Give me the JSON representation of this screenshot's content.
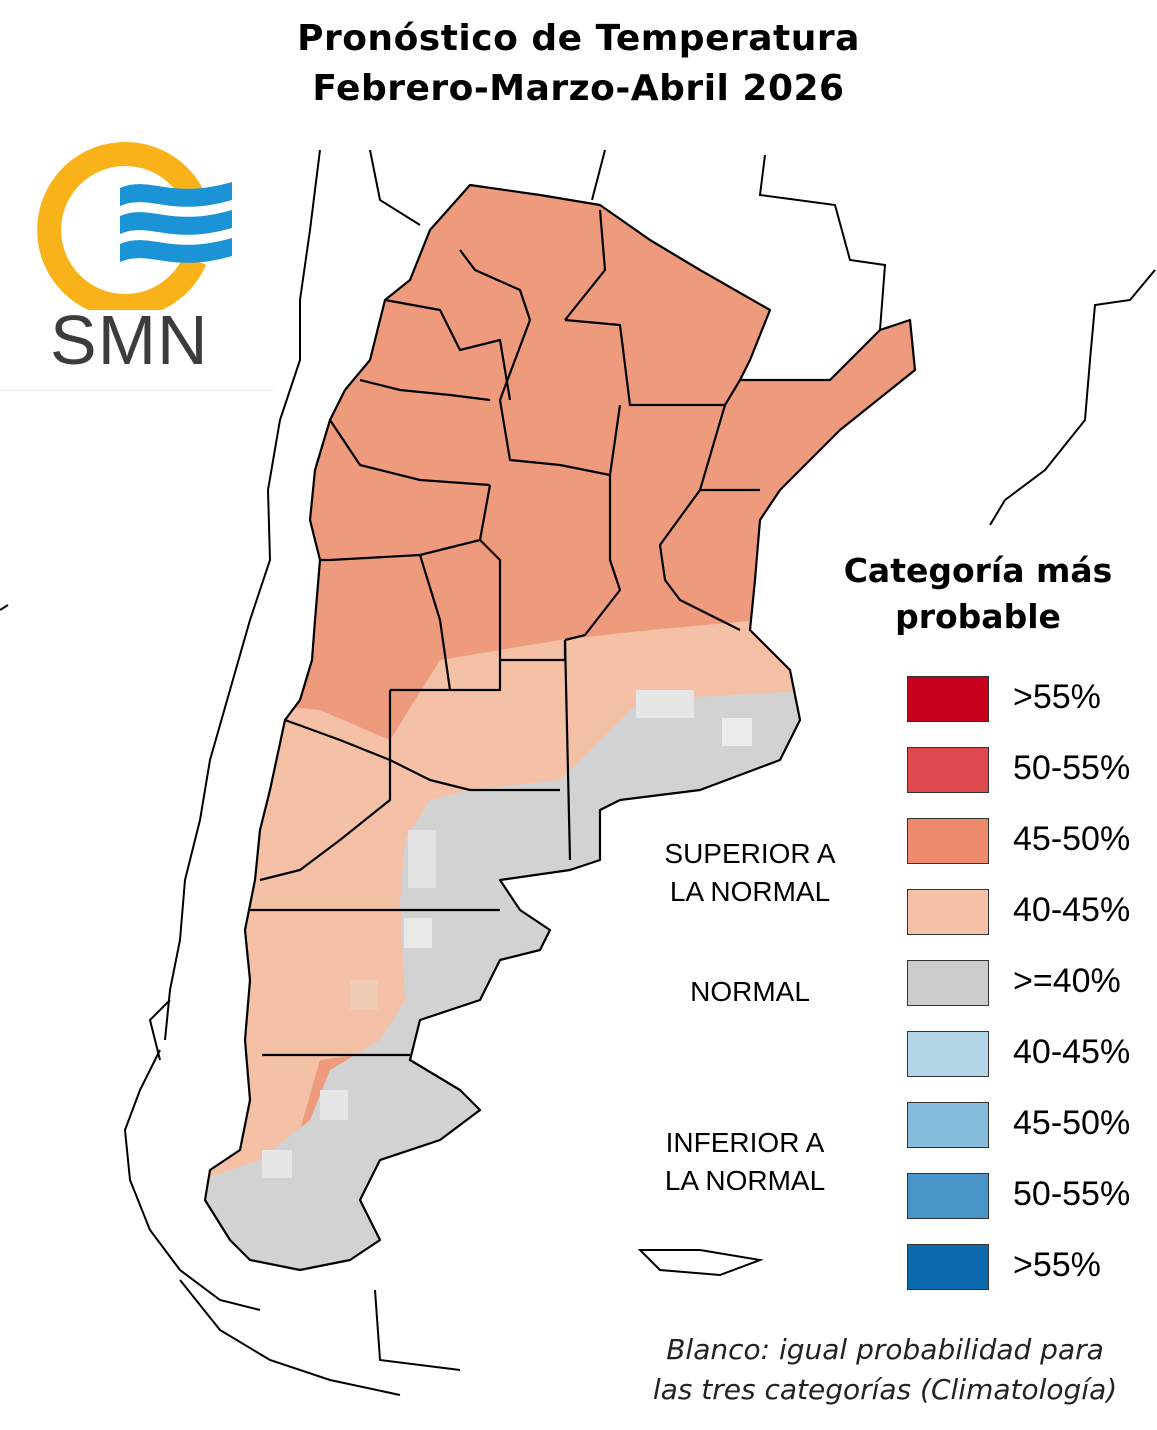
{
  "title": "Pronóstico de Temperatura",
  "subtitle": "Febrero-Marzo-Abril 2026",
  "logo": {
    "text": "SMN",
    "icon": "smn-logo-icon",
    "colors": {
      "ring": "#f9b21a",
      "waves": "#1b93d7"
    }
  },
  "legend": {
    "title_line1": "Categoría más",
    "title_line2": "probable",
    "items": [
      {
        "label": ">55%",
        "color": "#c8001e"
      },
      {
        "label": "50-55%",
        "color": "#de4a4e"
      },
      {
        "label": "45-50%",
        "color": "#ee8a6c"
      },
      {
        "label": "40-45%",
        "color": "#f4c0a6"
      },
      {
        "label": ">=40%",
        "color": "#cccccc"
      },
      {
        "label": "40-45%",
        "color": "#b4d4e8"
      },
      {
        "label": "45-50%",
        "color": "#86bcdc"
      },
      {
        "label": "50-55%",
        "color": "#4896c8"
      },
      {
        "label": ">55%",
        "color": "#0c6aae"
      }
    ],
    "categories": {
      "superior_line1": "SUPERIOR A",
      "superior_line2": "LA NORMAL",
      "normal": "NORMAL",
      "inferior_line1": "INFERIOR A",
      "inferior_line2": "LA NORMAL"
    }
  },
  "note_line1": "Blanco: igual probabilidad para",
  "note_line2": "las tres categorías (Climatología)",
  "map": {
    "region": "Argentina",
    "regions": [
      {
        "area": "north and center",
        "category": "45-50%",
        "color": "#ee8a6c"
      },
      {
        "area": "central-west and Patagonian Andes",
        "category": "40-45%",
        "color": "#f4c0a6"
      },
      {
        "area": "Buenos Aires and Patagonian coast",
        "category": ">=40%",
        "color": "#cccccc"
      }
    ]
  }
}
